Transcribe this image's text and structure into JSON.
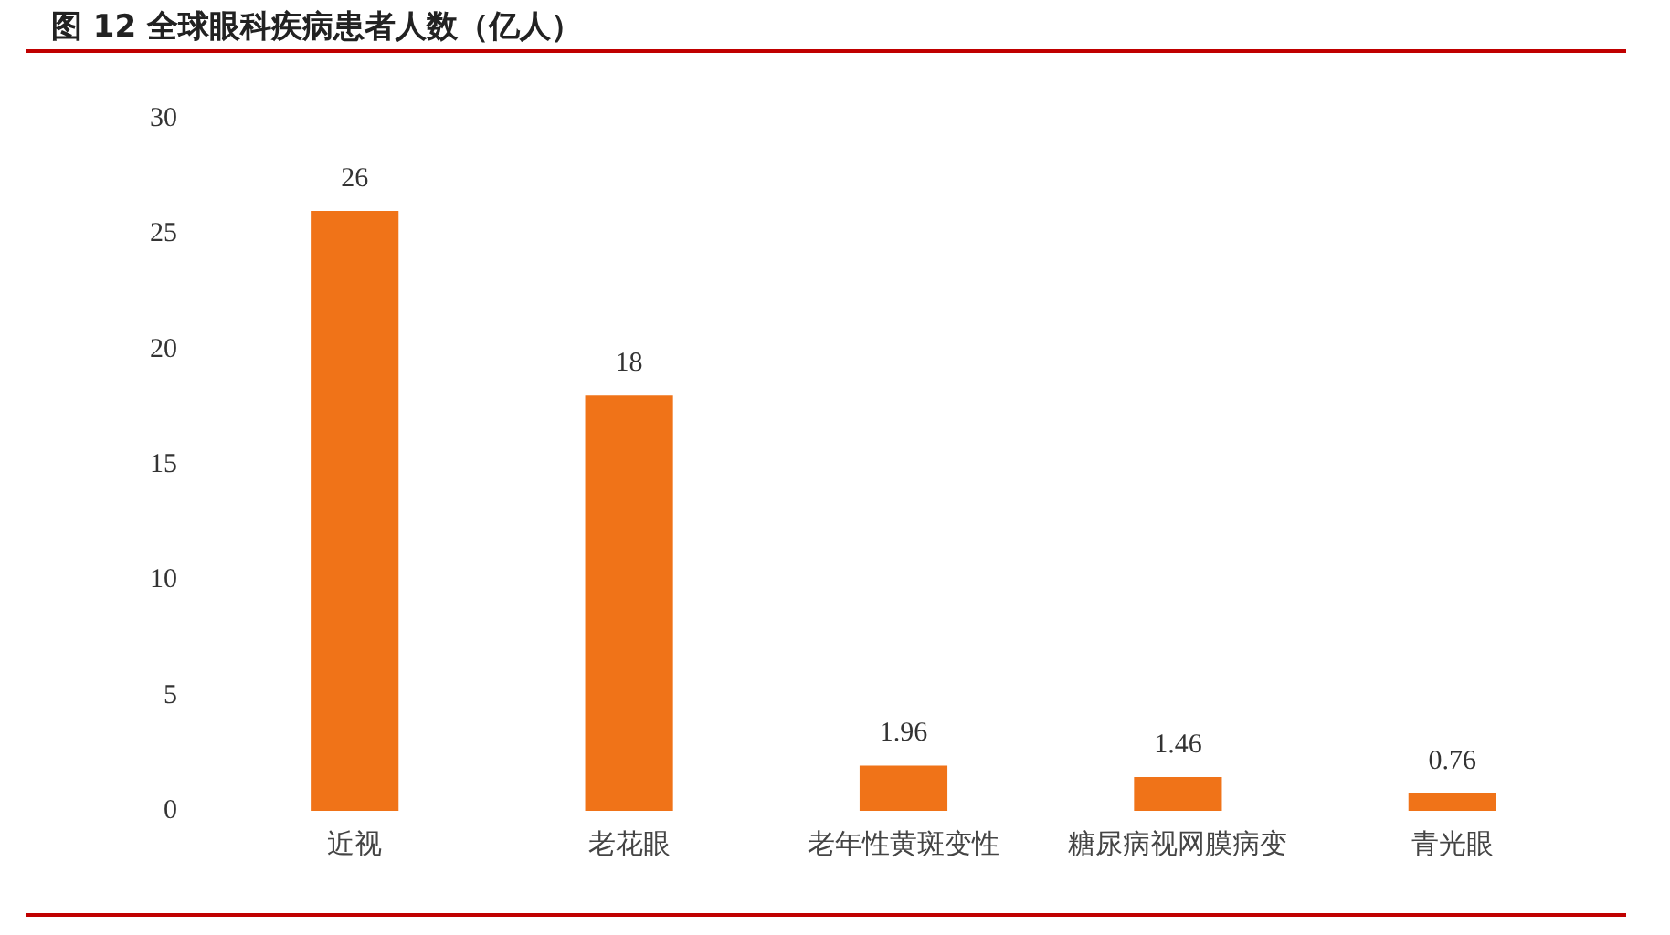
{
  "chart_data": {
    "type": "bar",
    "title": "图 12 全球眼科疾病患者人数（亿人）",
    "categories": [
      "近视",
      "老花眼",
      "老年性黄斑变性",
      "糖尿病视网膜病变",
      "青光眼"
    ],
    "values": [
      26,
      18,
      1.96,
      1.46,
      0.76
    ],
    "color": "#f07318",
    "ylim": [
      0,
      30
    ],
    "yticks": [
      0,
      5,
      10,
      15,
      20,
      25,
      30
    ],
    "grid": false,
    "data_labels": true
  }
}
